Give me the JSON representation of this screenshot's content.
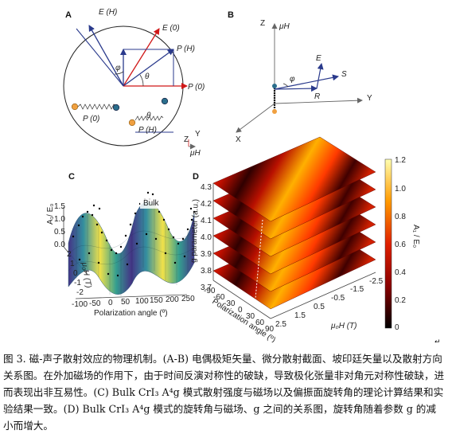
{
  "panels": {
    "a": {
      "label": "A",
      "vectors": [
        "E (H)",
        "E (0)",
        "P (H)",
        "P (0)",
        "P (0)",
        "P (H)"
      ],
      "angles": [
        "φ",
        "θ",
        "θ"
      ],
      "axes": [
        "Y",
        "Z",
        "μH"
      ]
    },
    "b": {
      "label": "B",
      "axes": [
        "Z",
        "μH",
        "Y",
        "X"
      ],
      "vectors": [
        "E",
        "S",
        "R"
      ],
      "angle": "φ"
    },
    "c": {
      "label": "C",
      "legend": "Bulk",
      "ylabel": "A₁/ E₀",
      "zlabel": "μ₀H (T)",
      "xlabel": "Polarization angle (º)",
      "ticks_a": [
        "1.5",
        "1.0",
        "0.5",
        "0.0"
      ],
      "ticks_h": [
        "2",
        "1",
        "0",
        "-1",
        "-2"
      ],
      "ticks_x": [
        "-100",
        "-50",
        "0",
        "50",
        "100",
        "150",
        "200",
        "250"
      ]
    },
    "d": {
      "label": "D",
      "ylabel": "g parameter (a.u.)",
      "xlabel": "Polarization angle (º)",
      "hlabel": "μ₀H (T)",
      "ticks_g": [
        "4.3",
        "4.2",
        "4.1",
        "4.0",
        "3.9",
        "3.8",
        "3.7"
      ],
      "ticks_angle": [
        "-90",
        "-60",
        "-30",
        "0",
        "30",
        "60",
        "90"
      ],
      "ticks_h": [
        "-2.5",
        "-1.5",
        "-0.5",
        "0.5",
        "1.5",
        "2.5"
      ],
      "colorbar_ticks": [
        "1.2",
        "1.0",
        "0.8",
        "0.6",
        "0.4",
        "0.2",
        "0"
      ],
      "colorbar_label": "A₁ / E₀"
    }
  },
  "caption": {
    "text": "图 3. 磁-声子散射效应的物理机制。(A-B) 电偶极矩矢量、微分散射截面、坡印廷矢量以及散射方向关系图。在外加磁场的作用下，由于时间反演对称性的破缺，导致极化张量非对角元对称性破缺，进而表现出非互易性。(C) Bulk CrI₃ A⁴g 模式散射强度与磁场以及偏振面旋转角的理论计算结果和实验结果一致。(D) Bulk CrI₃ A⁴g 模式的旋转角与磁场、g 之间的关系图，旋转角随着参数 g 的减小而增大。"
  },
  "colors": {
    "blue_vector": "#2a3a8c",
    "red_vector": "#d01818",
    "atom_orange": "#f0a040",
    "atom_blue": "#2a6e8c"
  }
}
